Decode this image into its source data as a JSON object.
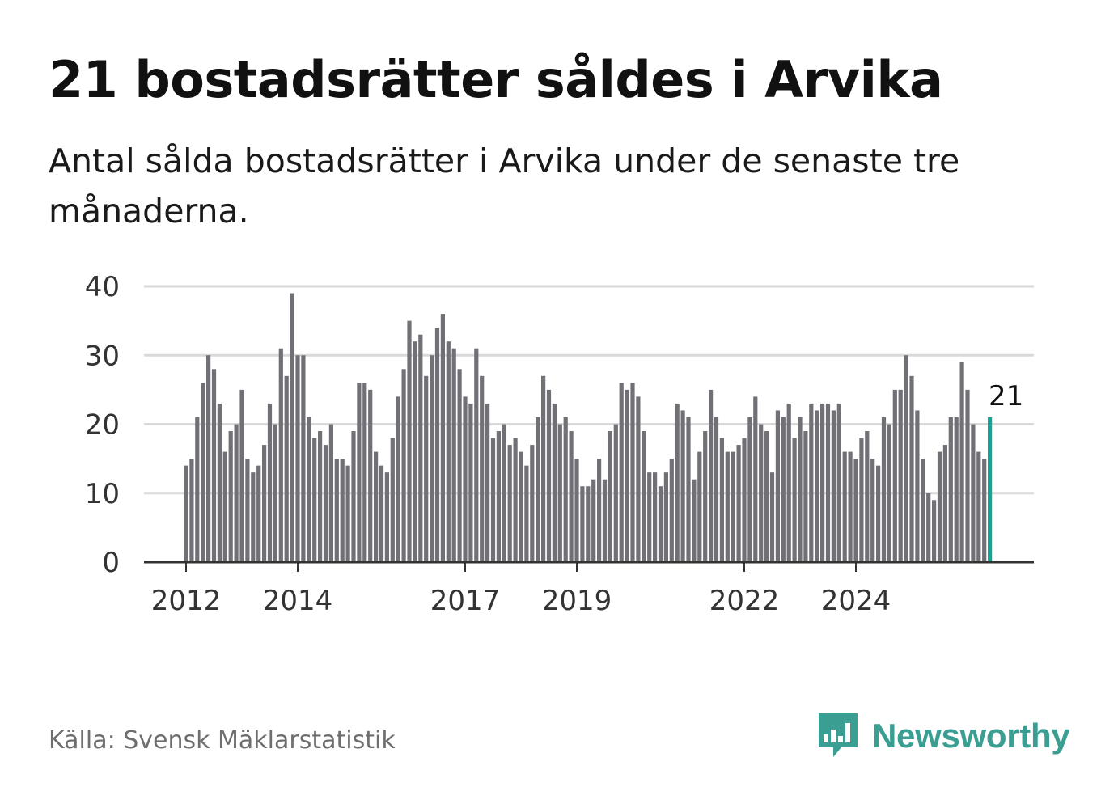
{
  "header": {
    "title": "21 bostadsrätter såldes i Arvika",
    "subtitle": "Antal sålda bostadsrätter i Arvika under de senaste tre månaderna."
  },
  "footer": {
    "source": "Källa: Svensk Mäklarstatistik",
    "brand": "Newsworthy",
    "brand_icon": "bar-chart-speech-bubble-icon"
  },
  "colors": {
    "bar": "#717076",
    "highlight": "#16a394",
    "grid": "#d9d9d9",
    "axis": "#333333",
    "brand": "#3a9e92"
  },
  "chart_data": {
    "type": "bar",
    "title": "21 bostadsrätter såldes i Arvika",
    "xlabel": "",
    "ylabel": "",
    "ylim": [
      0,
      40
    ],
    "yticks": [
      0,
      10,
      20,
      30,
      40
    ],
    "grid": true,
    "xtick_labels": [
      {
        "index": 0,
        "label": "2012"
      },
      {
        "index": 20,
        "label": "2014"
      },
      {
        "index": 50,
        "label": "2017"
      },
      {
        "index": 70,
        "label": "2019"
      },
      {
        "index": 100,
        "label": "2022"
      },
      {
        "index": 120,
        "label": "2024"
      }
    ],
    "values": [
      14,
      15,
      21,
      26,
      30,
      28,
      23,
      16,
      19,
      20,
      25,
      15,
      13,
      14,
      17,
      23,
      20,
      31,
      27,
      39,
      30,
      30,
      21,
      18,
      19,
      17,
      20,
      15,
      15,
      14,
      19,
      26,
      26,
      25,
      16,
      14,
      13,
      18,
      24,
      28,
      35,
      32,
      33,
      27,
      30,
      34,
      36,
      32,
      31,
      28,
      24,
      23,
      31,
      27,
      23,
      18,
      19,
      20,
      17,
      18,
      16,
      14,
      17,
      21,
      27,
      25,
      23,
      20,
      21,
      19,
      15,
      11,
      11,
      12,
      15,
      12,
      19,
      20,
      26,
      25,
      26,
      24,
      19,
      13,
      13,
      11,
      13,
      15,
      23,
      22,
      21,
      12,
      16,
      19,
      25,
      21,
      18,
      16,
      16,
      17,
      18,
      21,
      24,
      20,
      19,
      13,
      22,
      21,
      23,
      18,
      21,
      19,
      23,
      22,
      23,
      23,
      22,
      23,
      16,
      16,
      15,
      18,
      19,
      15,
      14,
      21,
      20,
      25,
      25,
      30,
      27,
      22,
      15,
      10,
      9,
      16,
      17,
      21,
      21,
      29,
      25,
      20,
      16,
      15,
      21
    ],
    "highlight_index": 144,
    "highlight_label": "21"
  }
}
